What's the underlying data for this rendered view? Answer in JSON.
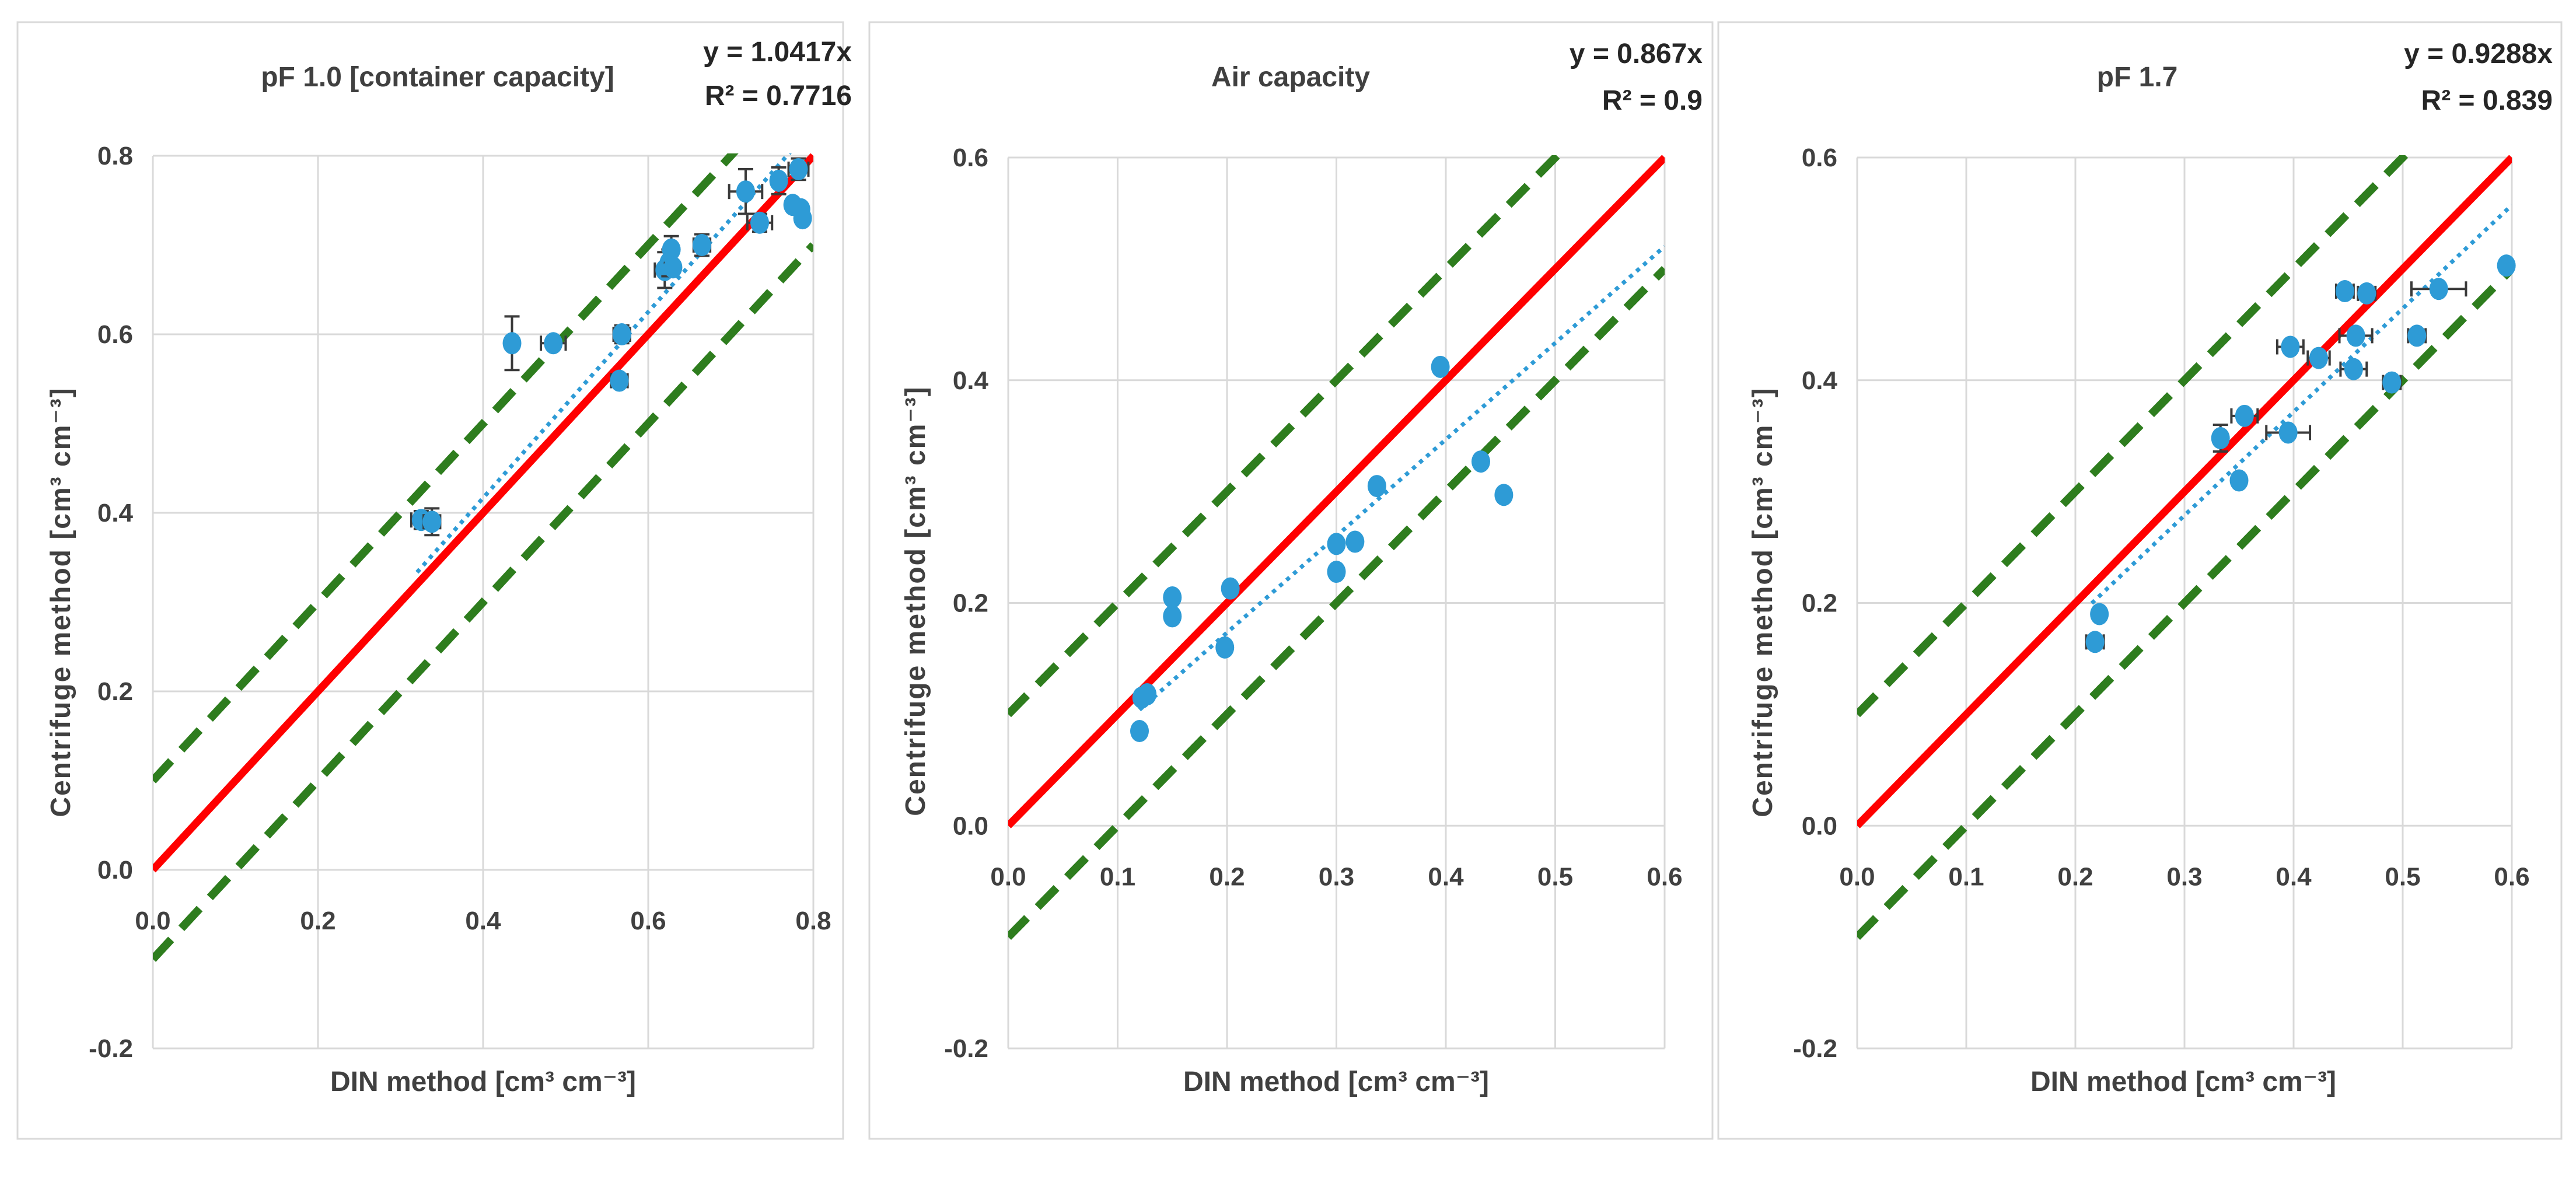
{
  "colors": {
    "ideal_line": "#ff0000",
    "bound_lines": "#2e7d1e",
    "trend_line": "#2e9bd6",
    "points": "#2e9bd6",
    "error_bars": "#3a3a3a",
    "grid": "#d9d9d9"
  },
  "chart_data": [
    {
      "type": "scatter",
      "title": "pF 1.0 [container capacity]",
      "equation": "y = 1.0417x",
      "r_squared": "R² = 0.7716",
      "xlabel": "DIN method [cm³ cm⁻³]",
      "ylabel": "Centrifuge method [cm³ cm⁻³]",
      "xlim": [
        0,
        0.8
      ],
      "ylim": [
        -0.2,
        0.8
      ],
      "xticks": [
        "0.0",
        "0.2",
        "0.4",
        "0.6",
        "0.8"
      ],
      "yticks": [
        "-0.2",
        "0.0",
        "0.2",
        "0.4",
        "0.6",
        "0.8"
      ],
      "ideal_line": {
        "slope": 1.0,
        "intercept": 0.0
      },
      "bound_lines": [
        {
          "slope": 1.0,
          "intercept": 0.1
        },
        {
          "slope": 1.0,
          "intercept": -0.1
        }
      ],
      "trend_line": {
        "slope": 1.0417,
        "x_range": [
          0.32,
          0.78
        ]
      },
      "points": [
        {
          "x": 0.325,
          "y": 0.392,
          "xerr": 0.012,
          "yerr": 0.01
        },
        {
          "x": 0.338,
          "y": 0.39,
          "xerr": 0.01,
          "yerr": 0.015
        },
        {
          "x": 0.435,
          "y": 0.59,
          "xerr": 0.0,
          "yerr": 0.03
        },
        {
          "x": 0.485,
          "y": 0.59,
          "xerr": 0.015,
          "yerr": 0.0
        },
        {
          "x": 0.565,
          "y": 0.548,
          "xerr": 0.01,
          "yerr": 0.0
        },
        {
          "x": 0.568,
          "y": 0.6,
          "xerr": 0.01,
          "yerr": 0.01
        },
        {
          "x": 0.62,
          "y": 0.672,
          "xerr": 0.012,
          "yerr": 0.02
        },
        {
          "x": 0.625,
          "y": 0.68,
          "xerr": 0.0,
          "yerr": 0.015
        },
        {
          "x": 0.628,
          "y": 0.695,
          "xerr": 0.0,
          "yerr": 0.015
        },
        {
          "x": 0.63,
          "y": 0.675,
          "xerr": 0.0,
          "yerr": 0.0
        },
        {
          "x": 0.665,
          "y": 0.7,
          "xerr": 0.01,
          "yerr": 0.012
        },
        {
          "x": 0.718,
          "y": 0.76,
          "xerr": 0.02,
          "yerr": 0.025
        },
        {
          "x": 0.735,
          "y": 0.725,
          "xerr": 0.015,
          "yerr": 0.01
        },
        {
          "x": 0.758,
          "y": 0.772,
          "xerr": 0.0,
          "yerr": 0.015
        },
        {
          "x": 0.775,
          "y": 0.745,
          "xerr": 0.0,
          "yerr": 0.0
        },
        {
          "x": 0.782,
          "y": 0.785,
          "xerr": 0.012,
          "yerr": 0.012
        },
        {
          "x": 0.785,
          "y": 0.74,
          "xerr": 0.0,
          "yerr": 0.0
        },
        {
          "x": 0.787,
          "y": 0.73,
          "xerr": 0.0,
          "yerr": 0.0
        }
      ]
    },
    {
      "type": "scatter",
      "title": "Air capacity",
      "equation": "y = 0.867x",
      "r_squared": "R² = 0.9",
      "xlabel": "DIN method [cm³ cm⁻³]",
      "ylabel": "Centrifuge method [cm³ cm⁻³]",
      "xlim": [
        0,
        0.6
      ],
      "ylim": [
        -0.2,
        0.6
      ],
      "xticks": [
        "0.0",
        "0.1",
        "0.2",
        "0.3",
        "0.4",
        "0.5",
        "0.6"
      ],
      "yticks": [
        "-0.2",
        "0.0",
        "0.2",
        "0.4",
        "0.6"
      ],
      "ideal_line": {
        "slope": 1.0,
        "intercept": 0.0
      },
      "bound_lines": [
        {
          "slope": 1.0,
          "intercept": 0.1
        },
        {
          "slope": 1.0,
          "intercept": -0.1
        }
      ],
      "trend_line": {
        "slope": 0.867,
        "x_range": [
          0.12,
          0.6
        ]
      },
      "points": [
        {
          "x": 0.12,
          "y": 0.085,
          "xerr": 0.0,
          "yerr": 0.0
        },
        {
          "x": 0.122,
          "y": 0.115,
          "xerr": 0.0,
          "yerr": 0.0
        },
        {
          "x": 0.127,
          "y": 0.118,
          "xerr": 0.0,
          "yerr": 0.0
        },
        {
          "x": 0.15,
          "y": 0.205,
          "xerr": 0.0,
          "yerr": 0.0
        },
        {
          "x": 0.15,
          "y": 0.188,
          "xerr": 0.0,
          "yerr": 0.0
        },
        {
          "x": 0.198,
          "y": 0.16,
          "xerr": 0.0,
          "yerr": 0.0
        },
        {
          "x": 0.203,
          "y": 0.213,
          "xerr": 0.0,
          "yerr": 0.0
        },
        {
          "x": 0.3,
          "y": 0.228,
          "xerr": 0.0,
          "yerr": 0.0
        },
        {
          "x": 0.3,
          "y": 0.253,
          "xerr": 0.0,
          "yerr": 0.0
        },
        {
          "x": 0.317,
          "y": 0.255,
          "xerr": 0.0,
          "yerr": 0.0
        },
        {
          "x": 0.337,
          "y": 0.305,
          "xerr": 0.0,
          "yerr": 0.0
        },
        {
          "x": 0.395,
          "y": 0.412,
          "xerr": 0.0,
          "yerr": 0.0
        },
        {
          "x": 0.432,
          "y": 0.327,
          "xerr": 0.0,
          "yerr": 0.0
        },
        {
          "x": 0.453,
          "y": 0.297,
          "xerr": 0.0,
          "yerr": 0.0
        }
      ]
    },
    {
      "type": "scatter",
      "title": "pF 1.7",
      "equation": "y = 0.9288x",
      "r_squared": "R² = 0.839",
      "xlabel": "DIN method [cm³ cm⁻³]",
      "ylabel": "Centrifuge  method [cm³ cm⁻³]",
      "xlim": [
        0,
        0.6
      ],
      "ylim": [
        -0.2,
        0.6
      ],
      "xticks": [
        "0.0",
        "0.1",
        "0.2",
        "0.3",
        "0.4",
        "0.5",
        "0.6"
      ],
      "yticks": [
        "-0.2",
        "0.0",
        "0.2",
        "0.4",
        "0.6"
      ],
      "ideal_line": {
        "slope": 1.0,
        "intercept": 0.0
      },
      "bound_lines": [
        {
          "slope": 1.0,
          "intercept": 0.1
        },
        {
          "slope": 1.0,
          "intercept": -0.1
        }
      ],
      "trend_line": {
        "slope": 0.9288,
        "x_range": [
          0.215,
          0.6
        ]
      },
      "points": [
        {
          "x": 0.218,
          "y": 0.165,
          "xerr": 0.008,
          "yerr": 0.0
        },
        {
          "x": 0.222,
          "y": 0.19,
          "xerr": 0.0,
          "yerr": 0.0
        },
        {
          "x": 0.333,
          "y": 0.348,
          "xerr": 0.0,
          "yerr": 0.012
        },
        {
          "x": 0.35,
          "y": 0.31,
          "xerr": 0.0,
          "yerr": 0.0
        },
        {
          "x": 0.355,
          "y": 0.368,
          "xerr": 0.012,
          "yerr": 0.0
        },
        {
          "x": 0.395,
          "y": 0.353,
          "xerr": 0.02,
          "yerr": 0.0
        },
        {
          "x": 0.397,
          "y": 0.43,
          "xerr": 0.012,
          "yerr": 0.0
        },
        {
          "x": 0.423,
          "y": 0.42,
          "xerr": 0.01,
          "yerr": 0.0
        },
        {
          "x": 0.447,
          "y": 0.48,
          "xerr": 0.008,
          "yerr": 0.0
        },
        {
          "x": 0.455,
          "y": 0.41,
          "xerr": 0.012,
          "yerr": 0.0
        },
        {
          "x": 0.457,
          "y": 0.44,
          "xerr": 0.015,
          "yerr": 0.0
        },
        {
          "x": 0.467,
          "y": 0.478,
          "xerr": 0.008,
          "yerr": 0.0
        },
        {
          "x": 0.49,
          "y": 0.398,
          "xerr": 0.008,
          "yerr": 0.0
        },
        {
          "x": 0.513,
          "y": 0.44,
          "xerr": 0.008,
          "yerr": 0.0
        },
        {
          "x": 0.533,
          "y": 0.482,
          "xerr": 0.025,
          "yerr": 0.0
        },
        {
          "x": 0.595,
          "y": 0.503,
          "xerr": 0.0,
          "yerr": 0.0
        }
      ]
    }
  ]
}
